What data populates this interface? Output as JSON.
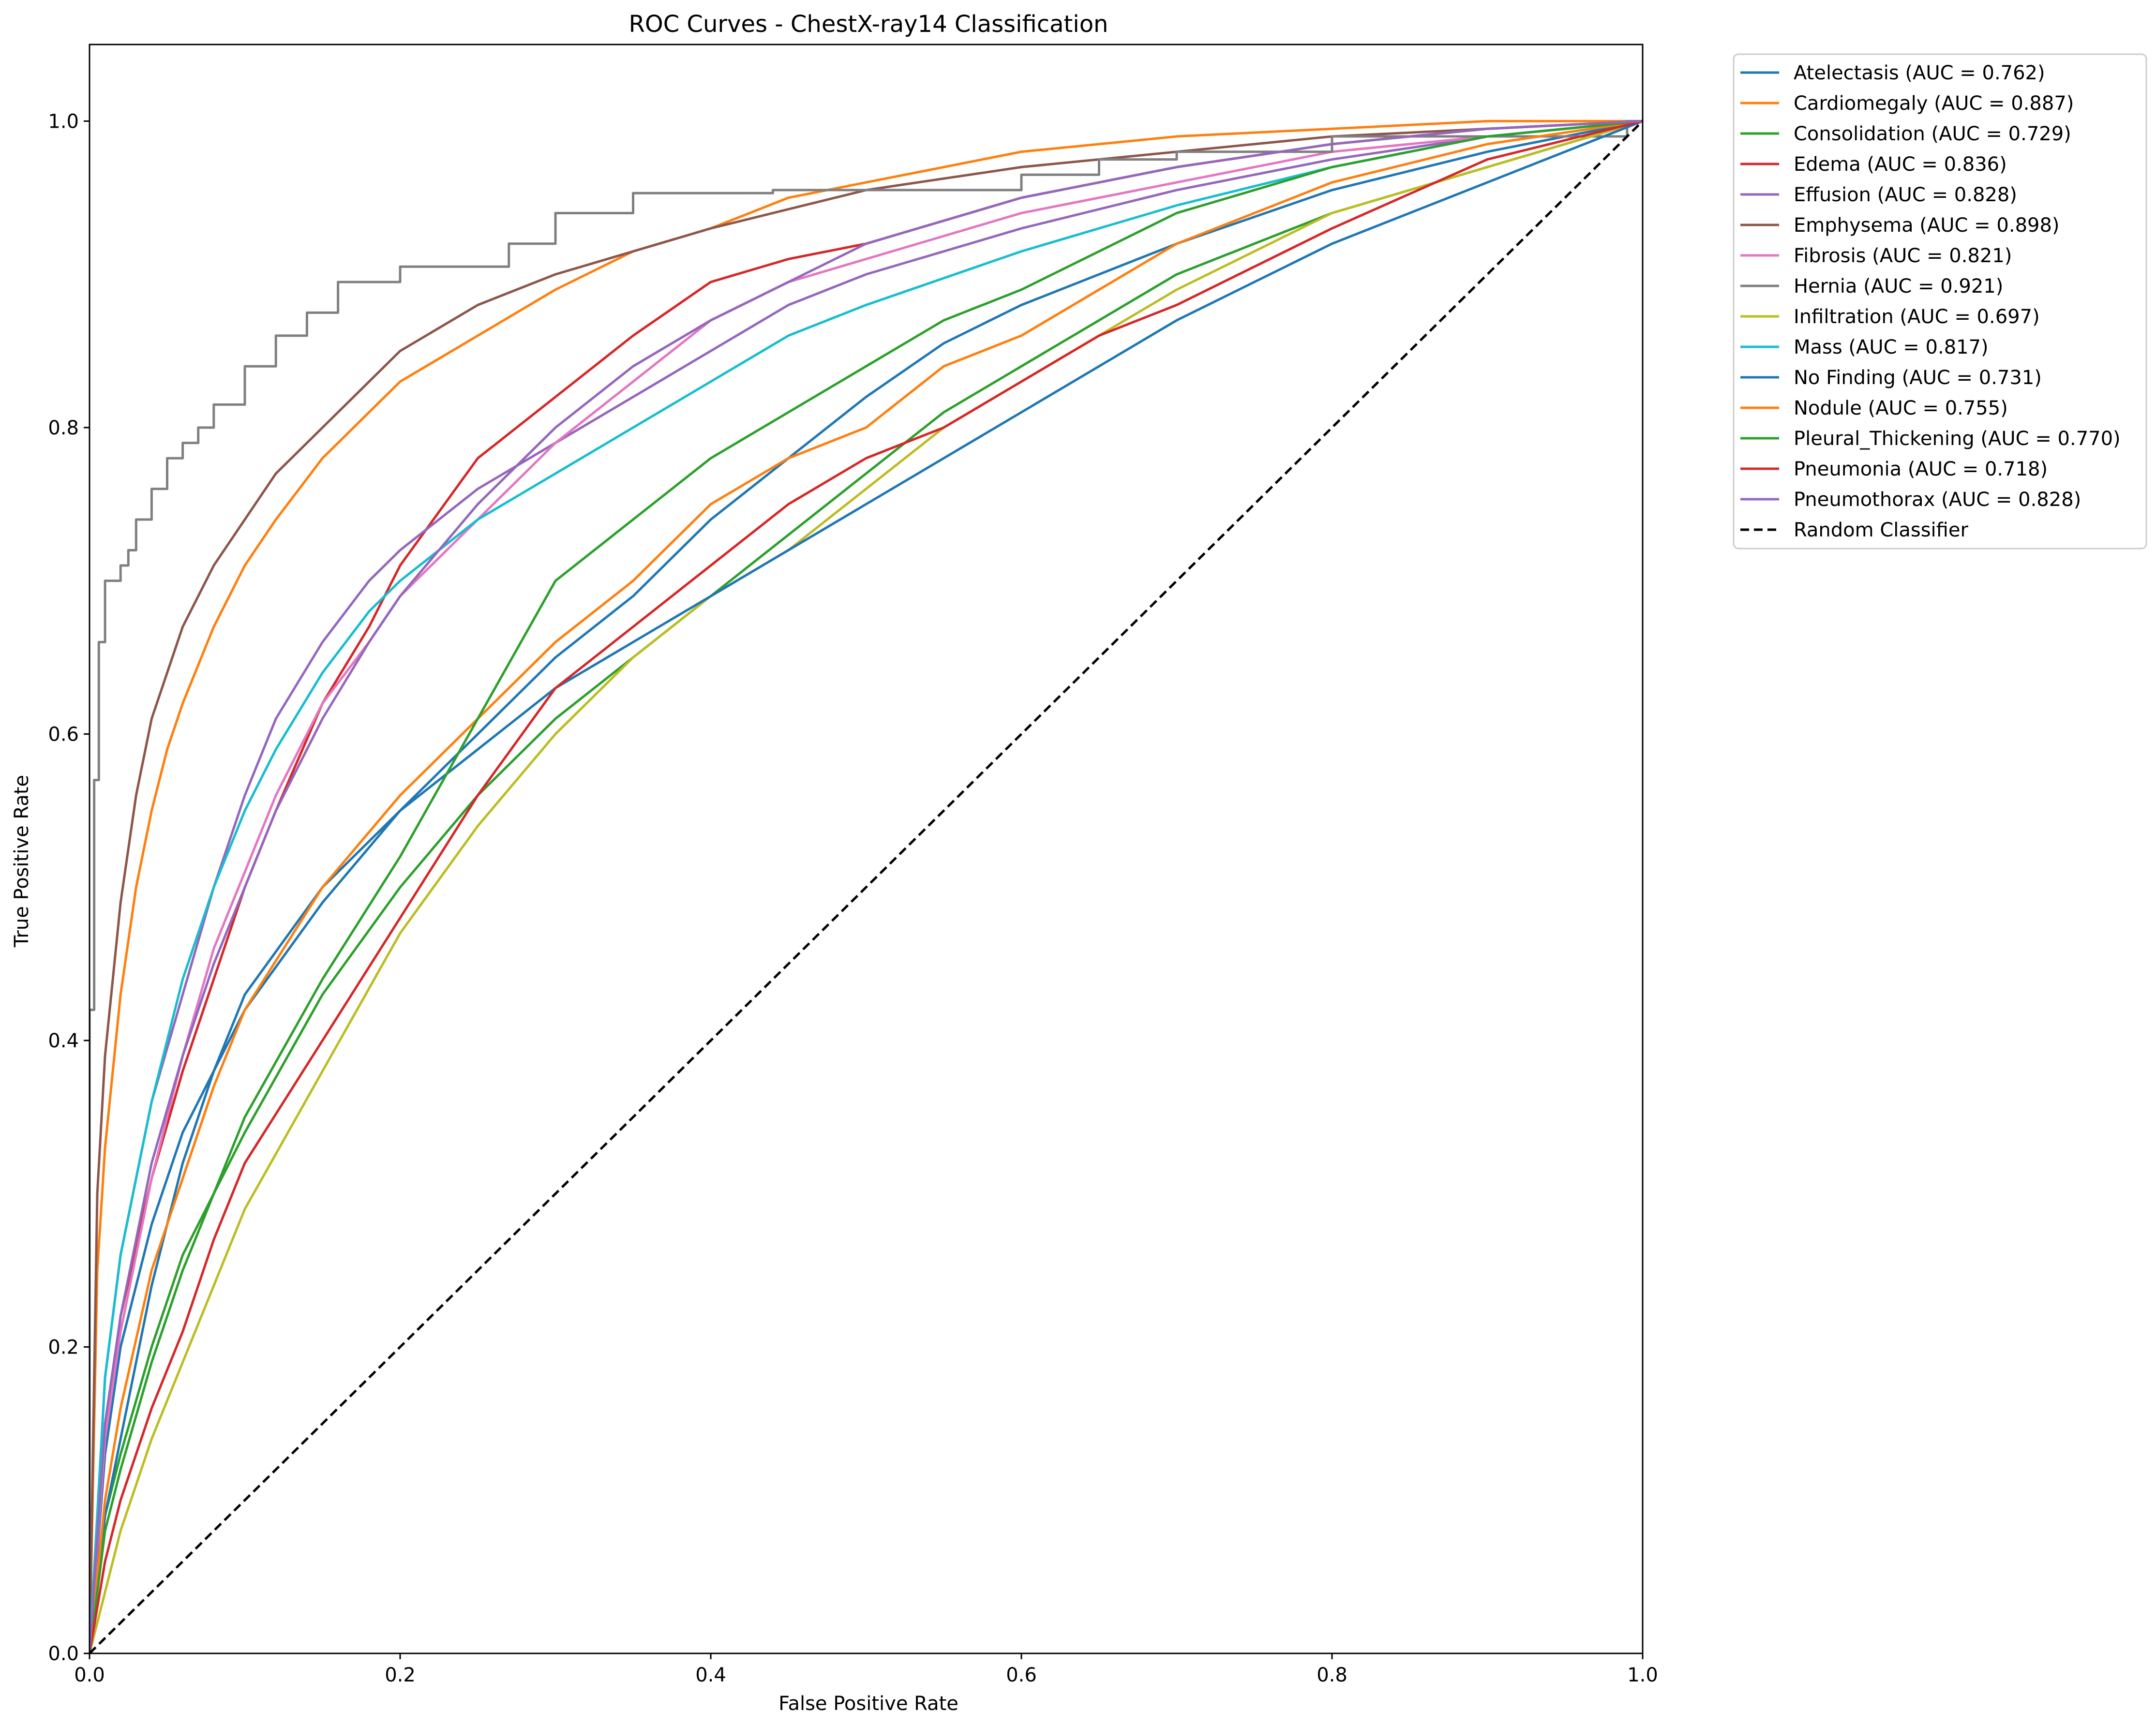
{
  "chart_data": {
    "type": "line",
    "title": "ROC Curves - ChestX-ray14 Classification",
    "xlabel": "False Positive Rate",
    "ylabel": "True Positive Rate",
    "xlim": [
      0.0,
      1.0
    ],
    "ylim": [
      0.0,
      1.05
    ],
    "xticks": [
      "0.0",
      "0.2",
      "0.4",
      "0.6",
      "0.8",
      "1.0"
    ],
    "yticks": [
      "0.0",
      "0.2",
      "0.4",
      "0.6",
      "0.8",
      "1.0"
    ],
    "grid": false,
    "legend_position": "outside upper right",
    "series": [
      {
        "name": "Atelectasis (AUC = 0.762)",
        "color": "#1f77b4",
        "style": "solid",
        "x": [
          0,
          0.01,
          0.02,
          0.04,
          0.06,
          0.08,
          0.1,
          0.15,
          0.2,
          0.25,
          0.3,
          0.35,
          0.4,
          0.45,
          0.5,
          0.55,
          0.6,
          0.65,
          0.7,
          0.8,
          0.9,
          1.0
        ],
        "y": [
          0,
          0.13,
          0.2,
          0.28,
          0.34,
          0.38,
          0.42,
          0.49,
          0.55,
          0.6,
          0.65,
          0.69,
          0.74,
          0.78,
          0.82,
          0.855,
          0.88,
          0.9,
          0.92,
          0.955,
          0.98,
          1.0
        ]
      },
      {
        "name": "Cardiomegaly (AUC = 0.887)",
        "color": "#ff7f0e",
        "style": "solid",
        "x": [
          0,
          0.005,
          0.01,
          0.02,
          0.03,
          0.04,
          0.05,
          0.06,
          0.08,
          0.1,
          0.12,
          0.15,
          0.2,
          0.25,
          0.3,
          0.35,
          0.4,
          0.45,
          0.5,
          0.6,
          0.7,
          0.8,
          0.9,
          1.0
        ],
        "y": [
          0,
          0.25,
          0.33,
          0.43,
          0.5,
          0.55,
          0.59,
          0.62,
          0.67,
          0.71,
          0.74,
          0.78,
          0.83,
          0.86,
          0.89,
          0.915,
          0.93,
          0.95,
          0.96,
          0.98,
          0.99,
          0.995,
          1.0,
          1.0
        ]
      },
      {
        "name": "Consolidation (AUC = 0.729)",
        "color": "#2ca02c",
        "style": "solid",
        "x": [
          0,
          0.01,
          0.02,
          0.04,
          0.06,
          0.08,
          0.1,
          0.15,
          0.2,
          0.25,
          0.3,
          0.35,
          0.4,
          0.45,
          0.5,
          0.55,
          0.6,
          0.65,
          0.7,
          0.8,
          0.9,
          1.0
        ],
        "y": [
          0,
          0.09,
          0.13,
          0.2,
          0.26,
          0.3,
          0.34,
          0.43,
          0.5,
          0.56,
          0.61,
          0.65,
          0.69,
          0.73,
          0.77,
          0.81,
          0.84,
          0.87,
          0.9,
          0.94,
          0.97,
          1.0
        ]
      },
      {
        "name": "Edema (AUC = 0.836)",
        "color": "#d62728",
        "style": "solid",
        "x": [
          0,
          0.01,
          0.02,
          0.04,
          0.06,
          0.08,
          0.1,
          0.12,
          0.15,
          0.18,
          0.2,
          0.25,
          0.3,
          0.35,
          0.4,
          0.45,
          0.5,
          0.6,
          0.7,
          0.8,
          0.9,
          1.0
        ],
        "y": [
          0,
          0.14,
          0.22,
          0.31,
          0.38,
          0.44,
          0.5,
          0.55,
          0.62,
          0.67,
          0.71,
          0.78,
          0.82,
          0.86,
          0.895,
          0.91,
          0.92,
          0.95,
          0.97,
          0.985,
          0.995,
          1.0
        ]
      },
      {
        "name": "Effusion (AUC = 0.828)",
        "color": "#9467bd",
        "style": "solid",
        "x": [
          0,
          0.01,
          0.02,
          0.04,
          0.06,
          0.08,
          0.1,
          0.12,
          0.15,
          0.18,
          0.2,
          0.25,
          0.3,
          0.35,
          0.4,
          0.45,
          0.5,
          0.6,
          0.7,
          0.8,
          0.9,
          1.0
        ],
        "y": [
          0,
          0.18,
          0.26,
          0.36,
          0.43,
          0.5,
          0.56,
          0.61,
          0.66,
          0.7,
          0.72,
          0.76,
          0.79,
          0.82,
          0.85,
          0.88,
          0.9,
          0.93,
          0.955,
          0.975,
          0.99,
          1.0
        ]
      },
      {
        "name": "Emphysema (AUC = 0.898)",
        "color": "#8c564b",
        "style": "solid",
        "x": [
          0,
          0.005,
          0.01,
          0.02,
          0.03,
          0.04,
          0.05,
          0.06,
          0.08,
          0.1,
          0.12,
          0.15,
          0.2,
          0.25,
          0.3,
          0.35,
          0.4,
          0.5,
          0.6,
          0.7,
          0.8,
          0.9,
          1.0
        ],
        "y": [
          0,
          0.3,
          0.39,
          0.49,
          0.56,
          0.61,
          0.64,
          0.67,
          0.71,
          0.74,
          0.77,
          0.8,
          0.85,
          0.88,
          0.9,
          0.915,
          0.93,
          0.955,
          0.97,
          0.98,
          0.99,
          0.995,
          1.0
        ]
      },
      {
        "name": "Fibrosis (AUC = 0.821)",
        "color": "#e377c2",
        "style": "solid",
        "x": [
          0,
          0.01,
          0.02,
          0.04,
          0.06,
          0.08,
          0.1,
          0.12,
          0.15,
          0.18,
          0.2,
          0.25,
          0.3,
          0.35,
          0.4,
          0.45,
          0.5,
          0.6,
          0.7,
          0.8,
          0.9,
          1.0
        ],
        "y": [
          0,
          0.14,
          0.21,
          0.31,
          0.39,
          0.46,
          0.51,
          0.56,
          0.62,
          0.66,
          0.69,
          0.74,
          0.79,
          0.83,
          0.87,
          0.895,
          0.91,
          0.94,
          0.96,
          0.98,
          0.99,
          1.0
        ]
      },
      {
        "name": "Hernia (AUC = 0.921)",
        "color": "#7f7f7f",
        "style": "step",
        "x": [
          0,
          0.003,
          0.006,
          0.01,
          0.02,
          0.025,
          0.03,
          0.04,
          0.05,
          0.06,
          0.07,
          0.08,
          0.1,
          0.12,
          0.14,
          0.16,
          0.2,
          0.27,
          0.3,
          0.35,
          0.44,
          0.5,
          0.6,
          0.65,
          0.7,
          0.8,
          0.9,
          0.99,
          1.0
        ],
        "y": [
          0,
          0.42,
          0.57,
          0.66,
          0.7,
          0.71,
          0.72,
          0.74,
          0.76,
          0.78,
          0.79,
          0.8,
          0.815,
          0.84,
          0.86,
          0.875,
          0.895,
          0.905,
          0.92,
          0.94,
          0.953,
          0.955,
          0.955,
          0.965,
          0.975,
          0.98,
          0.99,
          0.99,
          1.0
        ]
      },
      {
        "name": "Infiltration (AUC = 0.697)",
        "color": "#bcbd22",
        "style": "solid",
        "x": [
          0,
          0.01,
          0.02,
          0.04,
          0.06,
          0.08,
          0.1,
          0.15,
          0.2,
          0.25,
          0.3,
          0.35,
          0.4,
          0.45,
          0.5,
          0.55,
          0.6,
          0.65,
          0.7,
          0.8,
          0.9,
          1.0
        ],
        "y": [
          0,
          0.04,
          0.08,
          0.14,
          0.19,
          0.24,
          0.29,
          0.38,
          0.47,
          0.54,
          0.6,
          0.65,
          0.69,
          0.72,
          0.76,
          0.8,
          0.83,
          0.86,
          0.89,
          0.94,
          0.97,
          1.0
        ]
      },
      {
        "name": "Mass (AUC = 0.817)",
        "color": "#17becf",
        "style": "solid",
        "x": [
          0,
          0.01,
          0.02,
          0.04,
          0.06,
          0.08,
          0.1,
          0.12,
          0.15,
          0.18,
          0.2,
          0.25,
          0.3,
          0.35,
          0.4,
          0.45,
          0.5,
          0.6,
          0.7,
          0.8,
          0.9,
          1.0
        ],
        "y": [
          0,
          0.18,
          0.26,
          0.36,
          0.44,
          0.5,
          0.55,
          0.59,
          0.64,
          0.68,
          0.7,
          0.74,
          0.77,
          0.8,
          0.83,
          0.86,
          0.88,
          0.915,
          0.945,
          0.97,
          0.99,
          1.0
        ]
      },
      {
        "name": "No Finding (AUC = 0.731)",
        "color": "#1f77b4",
        "style": "solid",
        "x": [
          0,
          0.01,
          0.02,
          0.04,
          0.06,
          0.08,
          0.1,
          0.15,
          0.2,
          0.25,
          0.3,
          0.35,
          0.4,
          0.45,
          0.5,
          0.55,
          0.6,
          0.65,
          0.7,
          0.8,
          0.9,
          1.0
        ],
        "y": [
          0,
          0.09,
          0.14,
          0.24,
          0.32,
          0.38,
          0.43,
          0.5,
          0.55,
          0.59,
          0.63,
          0.66,
          0.69,
          0.72,
          0.75,
          0.78,
          0.81,
          0.84,
          0.87,
          0.92,
          0.96,
          1.0
        ]
      },
      {
        "name": "Nodule (AUC = 0.755)",
        "color": "#ff7f0e",
        "style": "solid",
        "x": [
          0,
          0.01,
          0.02,
          0.04,
          0.06,
          0.08,
          0.1,
          0.15,
          0.2,
          0.25,
          0.3,
          0.35,
          0.4,
          0.45,
          0.5,
          0.55,
          0.6,
          0.65,
          0.7,
          0.8,
          0.9,
          1.0
        ],
        "y": [
          0,
          0.1,
          0.16,
          0.25,
          0.31,
          0.37,
          0.42,
          0.5,
          0.56,
          0.61,
          0.66,
          0.7,
          0.75,
          0.78,
          0.8,
          0.84,
          0.86,
          0.89,
          0.92,
          0.96,
          0.985,
          1.0
        ]
      },
      {
        "name": "Pleural_Thickening (AUC = 0.770)",
        "color": "#2ca02c",
        "style": "solid",
        "x": [
          0,
          0.01,
          0.02,
          0.04,
          0.06,
          0.08,
          0.1,
          0.15,
          0.2,
          0.25,
          0.3,
          0.35,
          0.4,
          0.45,
          0.5,
          0.55,
          0.6,
          0.65,
          0.7,
          0.8,
          0.9,
          1.0
        ],
        "y": [
          0,
          0.08,
          0.12,
          0.19,
          0.25,
          0.3,
          0.35,
          0.44,
          0.52,
          0.61,
          0.7,
          0.74,
          0.78,
          0.81,
          0.84,
          0.87,
          0.89,
          0.915,
          0.94,
          0.97,
          0.99,
          1.0
        ]
      },
      {
        "name": "Pneumonia (AUC = 0.718)",
        "color": "#d62728",
        "style": "solid",
        "x": [
          0,
          0.01,
          0.02,
          0.04,
          0.06,
          0.08,
          0.1,
          0.15,
          0.2,
          0.25,
          0.3,
          0.35,
          0.4,
          0.45,
          0.5,
          0.55,
          0.6,
          0.65,
          0.7,
          0.8,
          0.9,
          1.0
        ],
        "y": [
          0,
          0.06,
          0.1,
          0.16,
          0.21,
          0.27,
          0.32,
          0.4,
          0.48,
          0.56,
          0.63,
          0.67,
          0.71,
          0.75,
          0.78,
          0.8,
          0.83,
          0.86,
          0.88,
          0.93,
          0.975,
          1.0
        ]
      },
      {
        "name": "Pneumothorax (AUC = 0.828)",
        "color": "#9467bd",
        "style": "solid",
        "x": [
          0,
          0.01,
          0.02,
          0.04,
          0.06,
          0.08,
          0.1,
          0.12,
          0.15,
          0.18,
          0.2,
          0.25,
          0.3,
          0.35,
          0.4,
          0.45,
          0.5,
          0.6,
          0.7,
          0.8,
          0.9,
          1.0
        ],
        "y": [
          0,
          0.15,
          0.22,
          0.32,
          0.39,
          0.45,
          0.5,
          0.55,
          0.61,
          0.66,
          0.69,
          0.75,
          0.8,
          0.84,
          0.87,
          0.895,
          0.92,
          0.95,
          0.97,
          0.985,
          0.995,
          1.0
        ]
      },
      {
        "name": "Random Classifier",
        "color": "#000000",
        "style": "dashed",
        "x": [
          0,
          1
        ],
        "y": [
          0,
          1
        ]
      }
    ]
  }
}
